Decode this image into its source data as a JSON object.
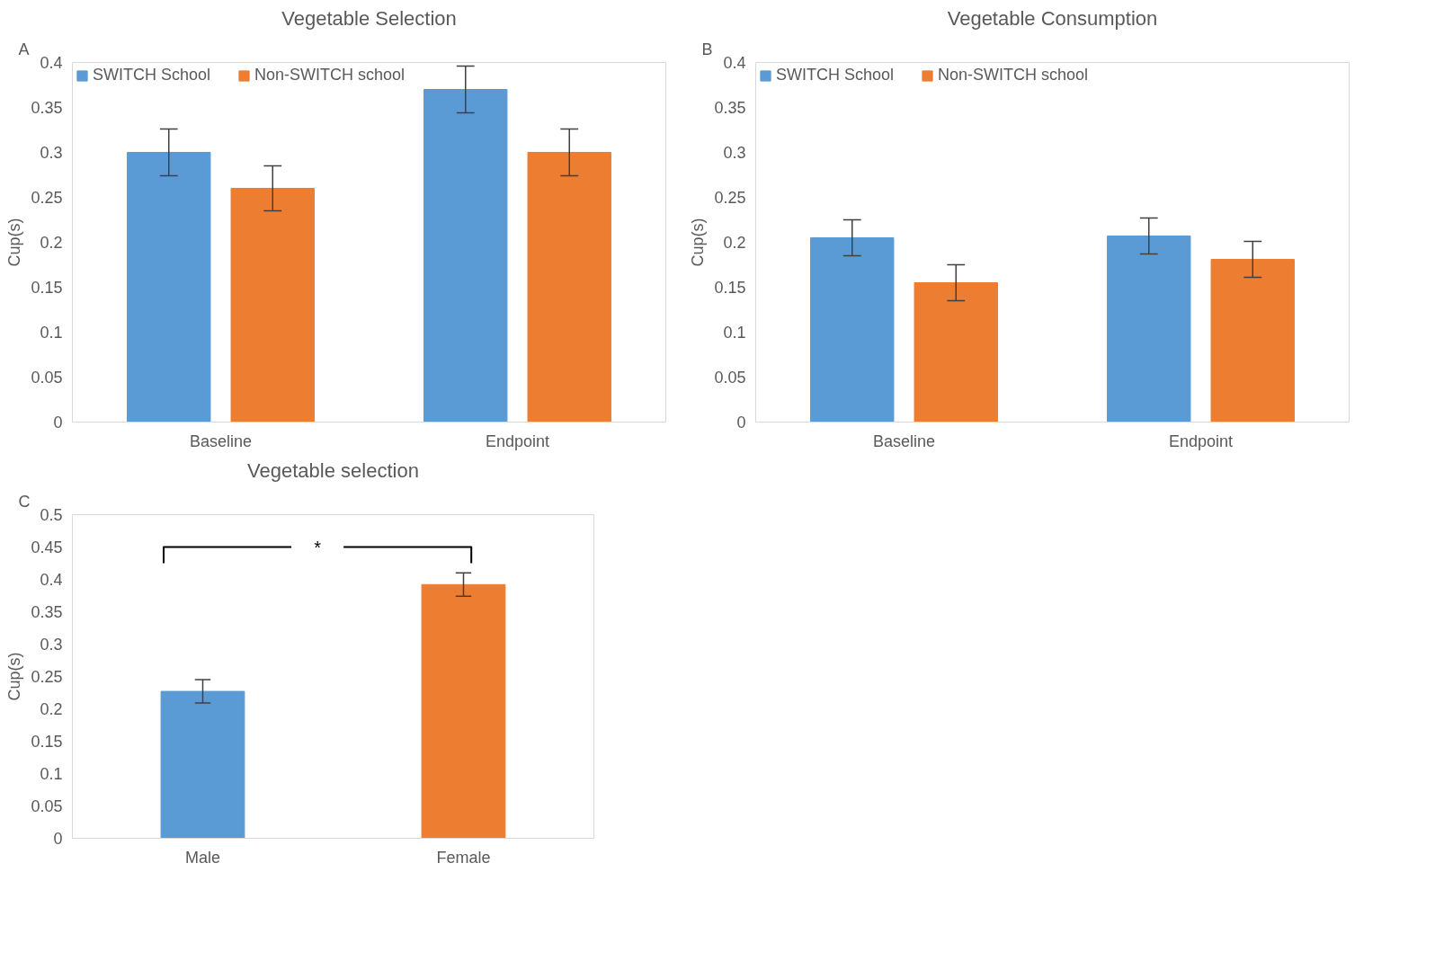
{
  "chart_data": [
    {
      "type": "bar",
      "title": "Vegetable Selection",
      "ylabel": "Cup(s)",
      "categories": [
        "Baseline",
        "Endpoint"
      ],
      "ylim": [
        0,
        0.4
      ],
      "yticks": [
        0,
        0.05,
        0.1,
        0.15,
        0.2,
        0.25,
        0.3,
        0.35,
        0.4
      ],
      "grid": false,
      "legend": "top left",
      "annotations": [
        "A"
      ],
      "series": [
        {
          "name": "SWITCH School",
          "color": "#5b9bd5",
          "values": [
            0.3,
            0.37
          ],
          "errors": [
            0.026,
            0.026
          ]
        },
        {
          "name": "Non-SWITCH school",
          "color": "#ed7d31",
          "values": [
            0.26,
            0.3
          ],
          "errors": [
            0.025,
            0.026
          ]
        }
      ]
    },
    {
      "type": "bar",
      "title": "Vegetable Consumption",
      "ylabel": "Cup(s)",
      "categories": [
        "Baseline",
        "Endpoint"
      ],
      "ylim": [
        0,
        0.4
      ],
      "yticks": [
        0,
        0.05,
        0.1,
        0.15,
        0.2,
        0.25,
        0.3,
        0.35,
        0.4
      ],
      "grid": false,
      "legend": "top left",
      "annotations": [
        "B"
      ],
      "series": [
        {
          "name": "SWITCH School",
          "color": "#5b9bd5",
          "values": [
            0.205,
            0.207
          ],
          "errors": [
            0.02,
            0.02
          ]
        },
        {
          "name": "Non-SWITCH school",
          "color": "#ed7d31",
          "values": [
            0.155,
            0.181
          ],
          "errors": [
            0.02,
            0.02
          ]
        }
      ]
    },
    {
      "type": "bar",
      "title": "Vegetable selection",
      "ylabel": "Cup(s)",
      "categories": [
        "Male",
        "Female"
      ],
      "ylim": [
        0,
        0.5
      ],
      "yticks": [
        0,
        0.05,
        0.1,
        0.15,
        0.2,
        0.25,
        0.3,
        0.35,
        0.4,
        0.45,
        0.5
      ],
      "grid": false,
      "legend": false,
      "annotations": [
        "C",
        "*"
      ],
      "values": [
        0.227,
        0.392
      ],
      "colors": [
        "#5b9bd5",
        "#ed7d31"
      ],
      "errors": [
        0.018,
        0.018
      ]
    }
  ]
}
